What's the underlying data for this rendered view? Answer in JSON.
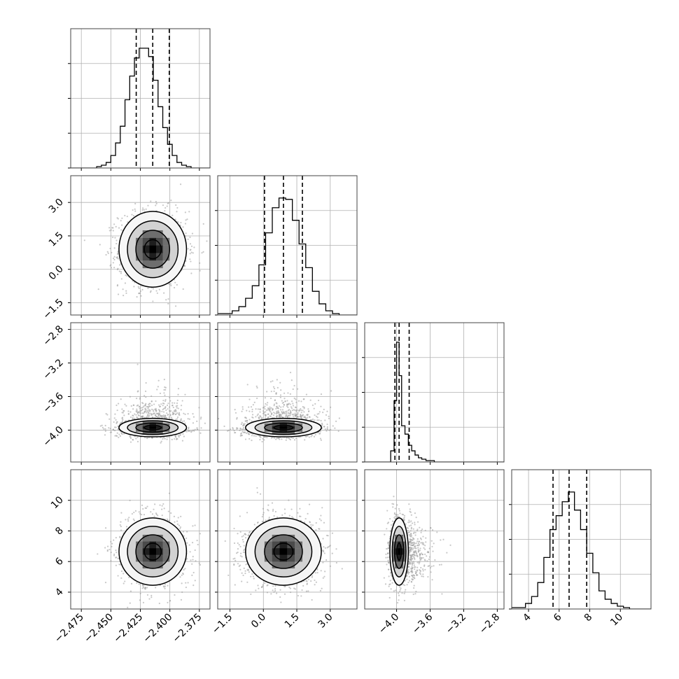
{
  "chart_data": {
    "type": "corner",
    "n_params": 4,
    "params": [
      {
        "ticks": [
          -2.475,
          -2.45,
          -2.425,
          -2.4,
          -2.375
        ],
        "tick_labels": [
          "−2.475",
          "−2.450",
          "−2.425",
          "−2.400",
          "−2.375"
        ],
        "range": [
          -2.484,
          -2.366
        ],
        "quantiles": [
          -2.4285,
          -2.4145,
          -2.4005
        ],
        "mean": -2.4145,
        "sd": 0.0143
      },
      {
        "ticks": [
          -1.5,
          0.0,
          1.5,
          3.0
        ],
        "tick_labels": [
          "−1.5",
          "0.0",
          "1.5",
          "3.0"
        ],
        "range": [
          -2.05,
          4.2
        ],
        "quantiles": [
          0.05,
          0.9,
          1.75
        ],
        "mean": 0.9,
        "sd": 0.85
      },
      {
        "ticks": [
          -4.0,
          -3.6,
          -3.2,
          -2.8
        ],
        "tick_labels": [
          "−4.0",
          "−3.6",
          "−3.2",
          "−2.8"
        ],
        "range": [
          -4.38,
          -2.72
        ],
        "quantiles": [
          -4.02,
          -3.97,
          -3.85
        ],
        "mean": -3.97,
        "sd": 0.1
      },
      {
        "ticks": [
          4,
          6,
          8,
          10
        ],
        "tick_labels": [
          "4",
          "6",
          "8",
          "10"
        ],
        "range": [
          2.9,
          12.0
        ],
        "quantiles": [
          5.6,
          6.65,
          7.8
        ],
        "mean": 6.65,
        "sd": 1.1
      }
    ],
    "histograms": [
      {
        "edges": [
          -2.484,
          -2.462,
          -2.458,
          -2.454,
          -2.45,
          -2.446,
          -2.442,
          -2.438,
          -2.434,
          -2.43,
          -2.426,
          -2.422,
          -2.418,
          -2.414,
          -2.41,
          -2.406,
          -2.402,
          -2.398,
          -2.394,
          -2.39,
          -2.386,
          -2.382,
          -2.378,
          -2.366
        ],
        "counts": [
          0,
          1,
          2,
          4,
          9,
          18,
          30,
          49,
          66,
          79,
          86,
          86,
          80,
          63,
          44,
          29,
          17,
          9,
          4,
          2,
          1,
          0,
          0
        ],
        "ymax": 100
      },
      {
        "edges": [
          -2.05,
          -1.4,
          -1.1,
          -0.8,
          -0.5,
          -0.2,
          0.1,
          0.4,
          0.7,
          1.0,
          1.3,
          1.6,
          1.9,
          2.2,
          2.5,
          2.8,
          3.1,
          3.4,
          4.2
        ],
        "counts": [
          1,
          3,
          6,
          12,
          21,
          36,
          59,
          77,
          84,
          83,
          68,
          51,
          34,
          17,
          8,
          3,
          1,
          0
        ],
        "ymax": 100
      },
      {
        "edges": [
          -4.38,
          -4.07,
          -4.03,
          -4.0,
          -3.97,
          -3.94,
          -3.9,
          -3.86,
          -3.82,
          -3.78,
          -3.74,
          -3.7,
          -3.65,
          -3.6,
          -3.55,
          -3.5,
          -2.72
        ],
        "counts": [
          0,
          8,
          44,
          86,
          62,
          26,
          20,
          12,
          8,
          5,
          3,
          2,
          1,
          1,
          0,
          0
        ],
        "ymax": 100
      },
      {
        "edges": [
          2.9,
          3.8,
          4.2,
          4.6,
          5.0,
          5.4,
          5.8,
          6.2,
          6.6,
          7.0,
          7.4,
          7.8,
          8.2,
          8.6,
          9.0,
          9.4,
          9.8,
          10.2,
          10.6,
          12.0
        ],
        "counts": [
          1,
          4,
          9,
          19,
          37,
          57,
          67,
          77,
          84,
          71,
          57,
          40,
          26,
          13,
          7,
          4,
          2,
          1,
          0
        ],
        "ymax": 100
      }
    ],
    "pairs": [
      {
        "x": 0,
        "y": 1,
        "cx": -2.4145,
        "cy": 0.9,
        "sx": 0.0143,
        "sy": 0.85,
        "rho": 0.0
      },
      {
        "x": 0,
        "y": 2,
        "cx": -2.4145,
        "cy": -3.97,
        "sx": 0.0143,
        "sy": 0.055,
        "rho": 0.0
      },
      {
        "x": 1,
        "y": 2,
        "cx": 0.9,
        "cy": -3.97,
        "sx": 0.85,
        "sy": 0.055,
        "rho": 0.0
      },
      {
        "x": 0,
        "y": 3,
        "cx": -2.4145,
        "cy": 6.65,
        "sx": 0.0143,
        "sy": 1.1,
        "rho": 0.0
      },
      {
        "x": 1,
        "y": 3,
        "cx": 0.9,
        "cy": 6.65,
        "sx": 0.85,
        "sy": 1.1,
        "rho": 0.0
      },
      {
        "x": 2,
        "y": 3,
        "cx": -3.97,
        "cy": 6.65,
        "sx": 0.055,
        "sy": 1.1,
        "rho": 0.0
      }
    ],
    "contour_sigma": [
      0.5,
      1.0,
      1.5,
      2.0
    ],
    "scatter_tail_stretch": {
      "2": 3.0
    },
    "grid": true,
    "colors": {
      "line": "#000000",
      "grid": "#b0b0b0",
      "scatter": "#9a9a9a"
    }
  }
}
